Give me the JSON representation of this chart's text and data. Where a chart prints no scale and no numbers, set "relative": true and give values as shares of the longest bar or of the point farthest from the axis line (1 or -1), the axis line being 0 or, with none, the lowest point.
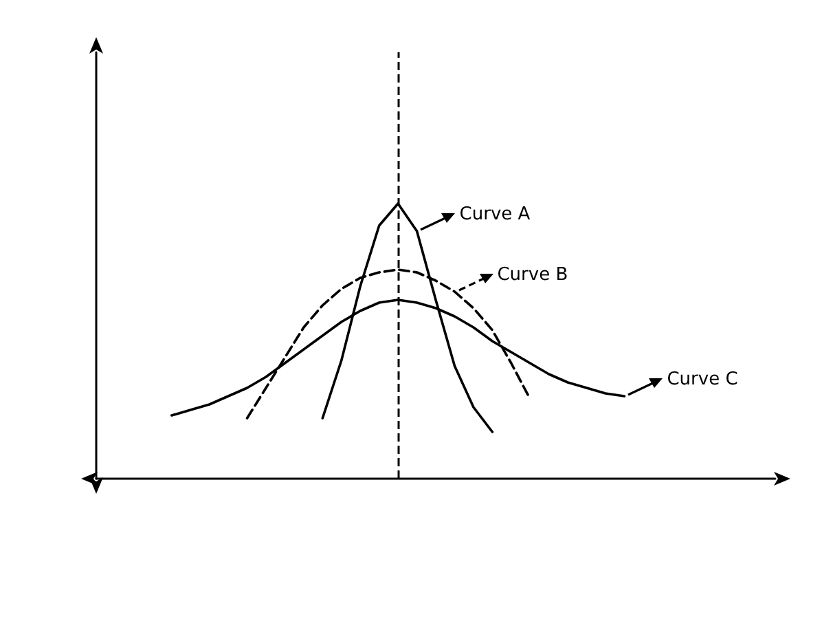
{
  "chart_data": {
    "type": "line",
    "relative": true,
    "grid": false,
    "legend": "right",
    "marker": "none",
    "categories": [
      null,
      null,
      null,
      null,
      null,
      null,
      null,
      null,
      null,
      null,
      null,
      null,
      null,
      null,
      null,
      null,
      null,
      null,
      null,
      null,
      null,
      null,
      null,
      null,
      null
    ],
    "series": [
      {
        "name": "Curve A",
        "color": "#000000",
        "line_style": "solid",
        "values": [
          null,
          null,
          null,
          null,
          null,
          null,
          null,
          null,
          0.22,
          0.43,
          0.7,
          0.92,
          1,
          0.9,
          0.65,
          0.41,
          0.26,
          0.17,
          null,
          null,
          null,
          null,
          null,
          null,
          null
        ]
      },
      {
        "name": "Curve B",
        "color": "#000000",
        "line_style": "dashed",
        "values": [
          null,
          null,
          null,
          null,
          0.22,
          0.33,
          0.44,
          0.55,
          0.63,
          0.69,
          0.73,
          0.75,
          0.76,
          0.75,
          0.72,
          0.68,
          0.62,
          0.54,
          0.42,
          0.29,
          null,
          null,
          null,
          null,
          null
        ]
      },
      {
        "name": "Curve C",
        "color": "#000000",
        "line_style": "solid",
        "values": [
          0.23,
          0.25,
          0.27,
          0.3,
          0.33,
          0.37,
          0.42,
          0.47,
          0.52,
          0.57,
          0.61,
          0.64,
          0.65,
          0.64,
          0.62,
          0.59,
          0.55,
          0.5,
          0.46,
          0.42,
          0.38,
          0.35,
          0.33,
          0.31,
          0.3
        ]
      }
    ],
    "ref_lines": [
      {
        "axis": "x",
        "label": null,
        "line_style": "dashed",
        "color": "#000000"
      }
    ]
  }
}
